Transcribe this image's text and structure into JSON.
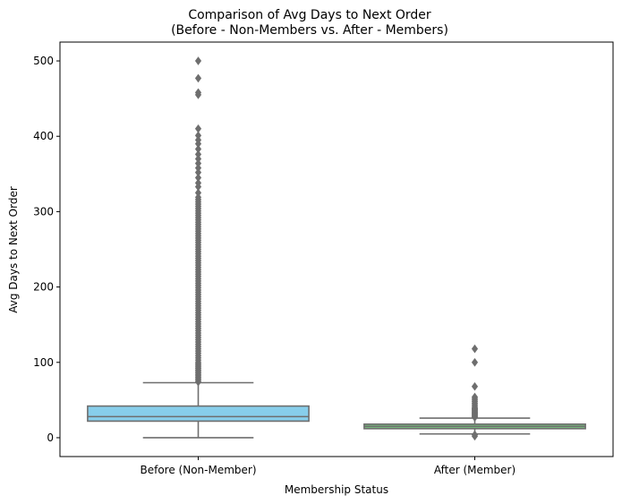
{
  "chart_data": {
    "type": "box",
    "title_line1": "Comparison of Avg Days to Next Order",
    "title_line2": "(Before - Non-Members vs. After - Members)",
    "xlabel": "Membership Status",
    "ylabel": "Avg Days to Next Order",
    "ylim": [
      -25,
      525
    ],
    "yticks": [
      0,
      100,
      200,
      300,
      400,
      500
    ],
    "ytick_labels": [
      "0",
      "100",
      "200",
      "300",
      "400",
      "500"
    ],
    "categories": [
      "Before (Non-Member)",
      "After (Member)"
    ],
    "colors": {
      "box_before": "#87CEEB",
      "box_after": "#77C27F",
      "line": "#6E6E6E",
      "axis": "#000000"
    },
    "boxes": [
      {
        "category": "Before (Non-Member)",
        "whisker_low": 0,
        "q1": 22,
        "median": 28,
        "q3": 42,
        "whisker_high": 73,
        "outliers": [
          74,
          76,
          78,
          80,
          82,
          84,
          86,
          88,
          90,
          92,
          94,
          96,
          98,
          100,
          103,
          106,
          109,
          112,
          115,
          118,
          121,
          124,
          127,
          130,
          133,
          136,
          139,
          142,
          145,
          148,
          151,
          154,
          157,
          160,
          163,
          166,
          169,
          172,
          175,
          178,
          181,
          184,
          187,
          190,
          193,
          196,
          199,
          202,
          205,
          208,
          211,
          214,
          217,
          220,
          223,
          226,
          229,
          232,
          235,
          238,
          241,
          244,
          247,
          250,
          253,
          256,
          259,
          262,
          265,
          268,
          271,
          274,
          277,
          280,
          283,
          286,
          289,
          292,
          295,
          298,
          301,
          304,
          307,
          310,
          313,
          316,
          319,
          325,
          333,
          338,
          345,
          352,
          358,
          364,
          370,
          376,
          383,
          390,
          395,
          401,
          410,
          455,
          458,
          477,
          500
        ]
      },
      {
        "category": "After (Member)",
        "whisker_low": 5,
        "q1": 12,
        "median": 15,
        "q3": 18,
        "whisker_high": 26,
        "outliers": [
          2,
          4,
          27,
          28,
          29,
          30,
          31,
          32,
          33,
          34,
          35,
          36,
          37,
          38,
          39,
          40,
          42,
          44,
          46,
          48,
          50,
          52,
          54,
          68,
          100,
          118
        ]
      }
    ]
  }
}
